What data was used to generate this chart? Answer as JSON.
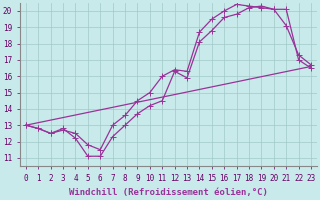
{
  "background_color": "#c8eaea",
  "grid_color": "#a0c8c8",
  "line_color": "#993399",
  "markersize": 2.5,
  "linewidth": 0.9,
  "xlim": [
    -0.5,
    23.5
  ],
  "ylim": [
    10.5,
    20.5
  ],
  "xtick_labels": [
    "0",
    "1",
    "2",
    "3",
    "4",
    "5",
    "6",
    "7",
    "8",
    "9",
    "10",
    "11",
    "12",
    "13",
    "14",
    "15",
    "16",
    "17",
    "18",
    "19",
    "20",
    "21",
    "22",
    "23"
  ],
  "yticks": [
    11,
    12,
    13,
    14,
    15,
    16,
    17,
    18,
    19,
    20
  ],
  "xlabel": "Windchill (Refroidissement éolien,°C)",
  "xlabel_fontsize": 6.5,
  "tick_fontsize": 5.5,
  "series": [
    {
      "x": [
        0,
        1,
        2,
        3,
        4,
        5,
        6,
        7,
        8,
        9,
        10,
        11,
        12,
        13,
        14,
        15,
        16,
        17,
        18,
        19,
        20,
        21,
        22,
        23
      ],
      "y": [
        13.0,
        12.8,
        12.5,
        12.8,
        12.2,
        11.1,
        11.1,
        12.3,
        13.0,
        13.7,
        14.2,
        14.5,
        16.3,
        15.9,
        18.1,
        18.8,
        19.6,
        19.8,
        20.2,
        20.3,
        20.1,
        19.1,
        17.3,
        16.7
      ]
    },
    {
      "x": [
        0,
        1,
        2,
        3,
        4,
        5,
        6,
        7,
        8,
        9,
        10,
        11,
        12,
        13,
        14,
        15,
        16,
        17,
        18,
        19,
        20,
        21,
        22,
        23
      ],
      "y": [
        13.0,
        12.8,
        12.5,
        12.7,
        12.5,
        11.8,
        11.5,
        13.0,
        13.6,
        14.5,
        15.0,
        16.0,
        16.4,
        16.3,
        18.7,
        19.5,
        20.0,
        20.4,
        20.3,
        20.2,
        20.1,
        20.1,
        17.0,
        16.5
      ]
    },
    {
      "x": [
        0,
        23
      ],
      "y": [
        13.0,
        16.6
      ],
      "no_marker": true
    }
  ]
}
